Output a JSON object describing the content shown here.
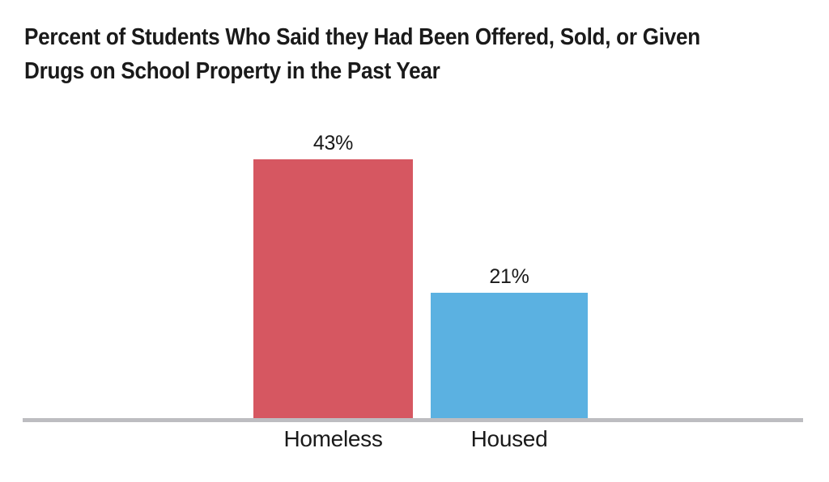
{
  "title_lines": [
    "Percent of Students Who Said they Had Been Offered, Sold, or Given",
    "Drugs on School Property in the Past Year"
  ],
  "chart_data": {
    "type": "bar",
    "title": "Percent of Students Who Said they Had Been Offered, Sold, or Given Drugs on School Property in the Past Year",
    "categories": [
      "Homeless",
      "Housed"
    ],
    "values": [
      43,
      21
    ],
    "value_labels": [
      "43%",
      "21%"
    ],
    "series_colors": [
      "#d65761",
      "#5bb1e1"
    ],
    "unit": "percent",
    "xlabel": "",
    "ylabel": "",
    "ylim": [
      0,
      45
    ],
    "grid": false,
    "legend": false,
    "y_axis_visible": false,
    "baseline_color": "#bdbdc1"
  },
  "colors": {
    "title_text": "#1a1a1a",
    "label_text": "#1a1a1a",
    "baseline": "#bdbdc1",
    "background": "#ffffff"
  }
}
